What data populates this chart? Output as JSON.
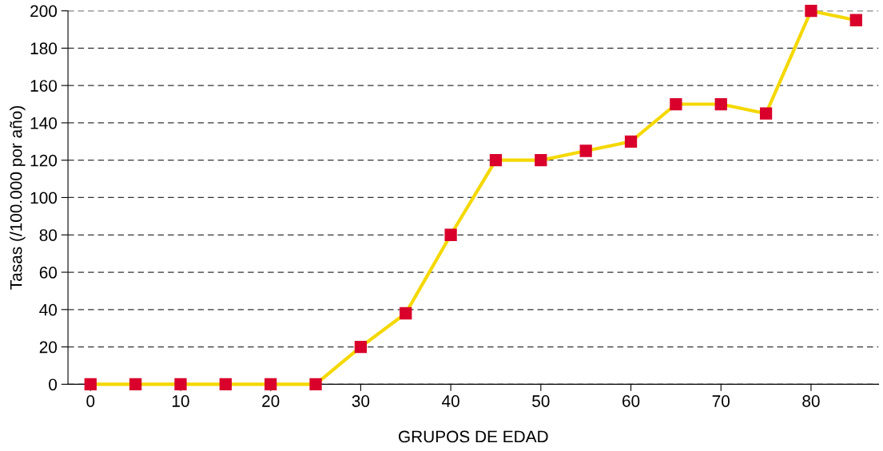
{
  "chart_data": {
    "type": "line",
    "xlabel": "GRUPOS DE EDAD",
    "ylabel": "Tasas (/100.000 por año)",
    "x": [
      0,
      5,
      10,
      15,
      20,
      25,
      30,
      35,
      40,
      45,
      50,
      55,
      60,
      65,
      70,
      75,
      80,
      85
    ],
    "series": [
      {
        "color": "#f5d800",
        "colors": [
          "#d9002b",
          "#d9002b",
          "#d9002b",
          "#d9002b",
          "#d9002b",
          "#d9002b",
          "#d9002b",
          "#d9002b",
          "#d9002b",
          "#d9002b",
          "#d9002b",
          "#d9002b",
          "#d9002b",
          "#d9002b",
          "#d9002b",
          "#d9002b",
          "#d9002b",
          "#d9002b"
        ],
        "values": [
          0,
          0,
          0,
          0,
          0,
          0,
          20,
          38,
          80,
          120,
          120,
          125,
          130,
          150,
          150,
          145,
          200,
          195
        ]
      }
    ],
    "xlim": [
      -2.5,
      87.5
    ],
    "xticks": [
      0,
      10,
      20,
      30,
      40,
      50,
      60,
      70,
      80
    ],
    "ylim": [
      0,
      200
    ],
    "yticks": [
      0,
      20,
      40,
      60,
      80,
      100,
      120,
      140,
      160,
      180,
      200
    ],
    "grid": "y",
    "marker": "square",
    "line_style": "solid"
  }
}
